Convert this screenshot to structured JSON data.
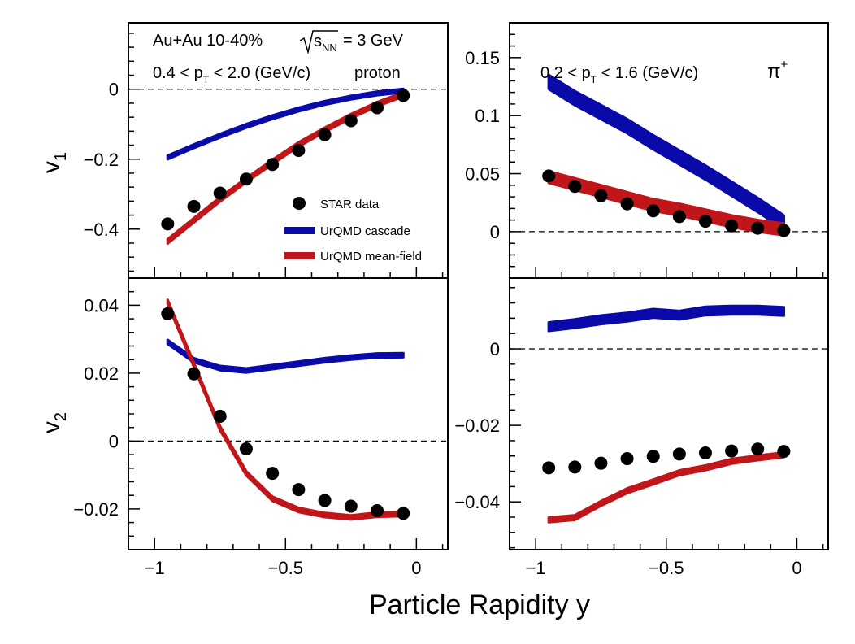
{
  "figure": {
    "xlabel": "Particle Rapidity y",
    "colors": {
      "data": "#000000",
      "cascade": "#0a0aa8",
      "meanfield": "#c0161a"
    }
  },
  "legend": {
    "entries": [
      {
        "label": "STAR data",
        "kind": "marker"
      },
      {
        "label": "UrQMD cascade",
        "kind": "cascade"
      },
      {
        "label": "UrQMD mean-field",
        "kind": "meanfield"
      }
    ]
  },
  "chart_data": [
    {
      "id": "v1_proton",
      "type": "line",
      "ylabel": "v1",
      "xlim": [
        -1.1,
        0.12
      ],
      "ylim": [
        -0.54,
        0.19
      ],
      "xticks": [
        -1,
        -0.5,
        0
      ],
      "xtick_labels": [
        "−1",
        "−0.5",
        "0"
      ],
      "yticks": [
        -0.4,
        -0.2,
        0
      ],
      "ytick_labels": [
        "−0.4",
        "−0.2",
        "0"
      ],
      "show_xtick_labels": false,
      "annotations": {
        "system": "Au+Au 10-40%",
        "energy": "= 3 GeV",
        "sqrt_sub": "NN",
        "pt_range": "0.4 < p",
        "pt_range_end": " < 2.0 (GeV/c)",
        "particle": "proton"
      },
      "x": [
        -0.95,
        -0.85,
        -0.75,
        -0.65,
        -0.55,
        -0.45,
        -0.35,
        -0.25,
        -0.15,
        -0.05
      ],
      "series": [
        {
          "name": "STAR data",
          "kind": "marker",
          "values": [
            -0.385,
            -0.335,
            -0.297,
            -0.257,
            -0.215,
            -0.175,
            -0.13,
            -0.09,
            -0.053,
            -0.018
          ]
        },
        {
          "name": "UrQMD cascade",
          "kind": "cascade",
          "values": [
            -0.195,
            -0.163,
            -0.133,
            -0.105,
            -0.08,
            -0.058,
            -0.039,
            -0.024,
            -0.012,
            -0.004
          ],
          "band": 0.005
        },
        {
          "name": "UrQMD mean-field",
          "kind": "meanfield",
          "values": [
            -0.435,
            -0.375,
            -0.315,
            -0.26,
            -0.208,
            -0.158,
            -0.116,
            -0.077,
            -0.043,
            -0.015
          ],
          "band": 0.006
        }
      ]
    },
    {
      "id": "v1_pion",
      "type": "line",
      "ylabel": "",
      "xlim": [
        -1.1,
        0.12
      ],
      "ylim": [
        -0.04,
        0.18
      ],
      "xticks": [
        -1,
        -0.5,
        0
      ],
      "xtick_labels": [
        "−1",
        "−0.5",
        "0"
      ],
      "yticks": [
        0,
        0.05,
        0.1,
        0.15
      ],
      "ytick_labels": [
        "0",
        "0.05",
        "0.1",
        "0.15"
      ],
      "show_xtick_labels": false,
      "annotations": {
        "pt_range": "0.2 < p",
        "pt_range_end": " < 1.6 (GeV/c)",
        "particle": "π",
        "particle_sup": "+"
      },
      "x": [
        -0.95,
        -0.85,
        -0.75,
        -0.65,
        -0.55,
        -0.45,
        -0.35,
        -0.25,
        -0.15,
        -0.05
      ],
      "series": [
        {
          "name": "STAR data",
          "kind": "marker",
          "values": [
            0.048,
            0.039,
            0.031,
            0.024,
            0.018,
            0.013,
            0.009,
            0.005,
            0.003,
            0.001
          ]
        },
        {
          "name": "UrQMD cascade",
          "kind": "cascade",
          "values": [
            0.129,
            0.115,
            0.103,
            0.091,
            0.077,
            0.064,
            0.051,
            0.037,
            0.023,
            0.008
          ],
          "band": 0.006
        },
        {
          "name": "UrQMD mean-field",
          "kind": "meanfield",
          "values": [
            0.047,
            0.041,
            0.035,
            0.029,
            0.023,
            0.019,
            0.014,
            0.009,
            0.005,
            0.002
          ],
          "band": 0.005
        }
      ]
    },
    {
      "id": "v2_proton",
      "type": "line",
      "ylabel": "v2",
      "xlim": [
        -1.1,
        0.12
      ],
      "ylim": [
        -0.032,
        0.048
      ],
      "xticks": [
        -1,
        -0.5,
        0
      ],
      "xtick_labels": [
        "−1",
        "−0.5",
        "0"
      ],
      "yticks": [
        -0.02,
        0,
        0.02,
        0.04
      ],
      "ytick_labels": [
        "−0.02",
        "0",
        "0.02",
        "0.04"
      ],
      "show_xtick_labels": true,
      "annotations": {},
      "x": [
        -0.95,
        -0.85,
        -0.75,
        -0.65,
        -0.55,
        -0.45,
        -0.35,
        -0.25,
        -0.15,
        -0.05
      ],
      "series": [
        {
          "name": "STAR data",
          "kind": "marker",
          "values": [
            0.0375,
            0.0198,
            0.0073,
            -0.0023,
            -0.0095,
            -0.0143,
            -0.0175,
            -0.0192,
            -0.0205,
            -0.0213
          ]
        },
        {
          "name": "UrQMD cascade",
          "kind": "cascade",
          "values": [
            0.0292,
            0.0238,
            0.0215,
            0.0208,
            0.0218,
            0.0228,
            0.0238,
            0.0246,
            0.0252,
            0.0253
          ],
          "band": 0.0006
        },
        {
          "name": "UrQMD mean-field",
          "kind": "meanfield",
          "values": [
            0.041,
            0.0225,
            0.0038,
            -0.0095,
            -0.017,
            -0.0203,
            -0.0218,
            -0.0225,
            -0.0217,
            -0.0215
          ],
          "band": 0.0006
        }
      ]
    },
    {
      "id": "v2_pion",
      "type": "line",
      "ylabel": "",
      "xlim": [
        -1.1,
        0.12
      ],
      "ylim": [
        -0.0525,
        0.0185
      ],
      "xticks": [
        -1,
        -0.5,
        0
      ],
      "xtick_labels": [
        "−1",
        "−0.5",
        "0"
      ],
      "yticks": [
        -0.04,
        -0.02,
        0
      ],
      "ytick_labels": [
        "−0.04",
        "−0.02",
        "0"
      ],
      "show_xtick_labels": true,
      "annotations": {},
      "x": [
        -0.95,
        -0.85,
        -0.75,
        -0.65,
        -0.55,
        -0.45,
        -0.35,
        -0.25,
        -0.15,
        -0.05
      ],
      "series": [
        {
          "name": "STAR data",
          "kind": "marker",
          "values": [
            -0.0311,
            -0.0309,
            -0.0299,
            -0.0287,
            -0.0281,
            -0.0275,
            -0.0272,
            -0.0267,
            -0.0262,
            -0.0268
          ]
        },
        {
          "name": "UrQMD cascade",
          "kind": "cascade",
          "values": [
            0.0058,
            0.0066,
            0.0076,
            0.0083,
            0.0093,
            0.0088,
            0.0099,
            0.0101,
            0.0101,
            0.0098
          ],
          "band": 0.0011
        },
        {
          "name": "UrQMD mean-field",
          "kind": "meanfield",
          "values": [
            -0.0447,
            -0.0441,
            -0.0404,
            -0.0371,
            -0.0348,
            -0.0324,
            -0.0311,
            -0.0294,
            -0.0285,
            -0.0277
          ],
          "band": 0.0006
        }
      ]
    }
  ]
}
